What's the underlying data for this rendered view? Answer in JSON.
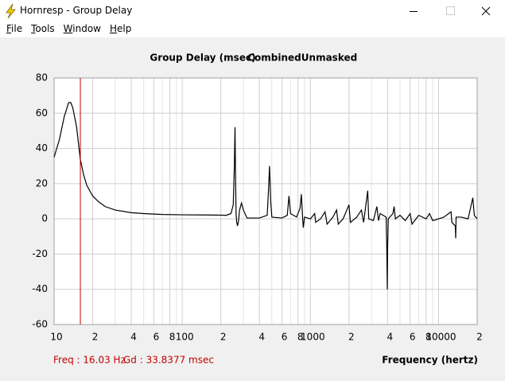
{
  "window": {
    "title": "Hornresp - Group Delay",
    "menu": [
      "File",
      "Tools",
      "Window",
      "Help"
    ]
  },
  "chart_data": {
    "type": "line",
    "title": [
      "Group Delay (msec)",
      "Combined",
      "Unmasked"
    ],
    "x_label": "Frequency (hertz)",
    "cursor_freq_label": "Freq : 16.03 Hz",
    "cursor_gd_label": "Gd : 33.8377 msec",
    "cursor_x": 16.03,
    "cursor_color": "#c00000",
    "log_x": true,
    "grid": true,
    "color": "#000000",
    "xlim": [
      10,
      20000
    ],
    "ylim": [
      -60,
      80
    ],
    "yticks": [
      80,
      60,
      40,
      20,
      0,
      -20,
      -40,
      -60
    ],
    "xticks": [
      10,
      {
        "value": 20,
        "label": "2"
      },
      {
        "value": 40,
        "label": "4"
      },
      {
        "value": 60,
        "label": "6"
      },
      {
        "value": 80,
        "label": "8"
      },
      100,
      {
        "value": 200,
        "label": "2"
      },
      {
        "value": 400,
        "label": "4"
      },
      {
        "value": 600,
        "label": "6"
      },
      {
        "value": 800,
        "label": "8"
      },
      1000,
      {
        "value": 2000,
        "label": "2"
      },
      {
        "value": 4000,
        "label": "4"
      },
      {
        "value": 6000,
        "label": "6"
      },
      {
        "value": 8000,
        "label": "8"
      },
      10000,
      {
        "value": 20000,
        "label": "2"
      }
    ],
    "x_minor_grid": [
      30,
      50,
      70,
      90,
      300,
      500,
      700,
      900,
      3000,
      5000,
      7000,
      9000
    ],
    "x": [
      10,
      11,
      12,
      13,
      13.5,
      14,
      15,
      16,
      17,
      18,
      20,
      22,
      25,
      30,
      40,
      50,
      70,
      100,
      150,
      200,
      220,
      240,
      250,
      255,
      258,
      261,
      263,
      266,
      270,
      275,
      280,
      290,
      300,
      320,
      400,
      460,
      470,
      480,
      490,
      500,
      600,
      660,
      680,
      700,
      780,
      830,
      850,
      870,
      880,
      900,
      1000,
      1080,
      1100,
      1200,
      1300,
      1350,
      1500,
      1600,
      1650,
      1800,
      2000,
      2050,
      2300,
      2500,
      2600,
      2800,
      2850,
      3100,
      3300,
      3400,
      3500,
      3700,
      3900,
      3950,
      3980,
      4000,
      4050,
      4400,
      4500,
      4600,
      5000,
      5500,
      6000,
      6200,
      7000,
      8000,
      8500,
      9000,
      10000,
      11000,
      12500,
      12700,
      13500,
      13600,
      13700,
      15000,
      17000,
      18500,
      19000,
      20000
    ],
    "values": [
      35,
      45,
      58,
      66,
      66,
      63,
      52,
      34,
      25,
      19,
      13,
      10,
      7,
      5,
      3.5,
      3,
      2.5,
      2.3,
      2.2,
      2.1,
      2,
      3,
      8,
      30,
      52,
      20,
      3,
      -2,
      -4,
      -1,
      5,
      9,
      5,
      0.5,
      0.5,
      2,
      15,
      30,
      10,
      1,
      0.5,
      2,
      13,
      3,
      1,
      6,
      14,
      0,
      -5,
      1,
      0,
      3,
      -2,
      0,
      4,
      -3,
      1,
      5,
      -3,
      0,
      8,
      -2,
      1,
      5,
      -2,
      16,
      0,
      -1,
      7,
      -1,
      3,
      2,
      1,
      -20,
      -40,
      -18,
      0,
      3,
      7,
      0,
      2,
      -1,
      3,
      -3,
      2,
      0,
      3,
      -1,
      0,
      1,
      4,
      -2,
      -4,
      -11,
      1,
      1,
      0,
      12,
      2,
      0
    ]
  }
}
